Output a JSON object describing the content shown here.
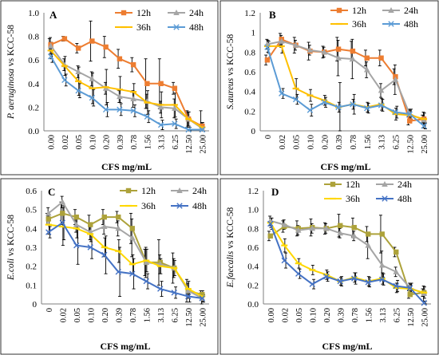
{
  "chart_data": [
    {
      "type": "line",
      "panel": "A",
      "ylabel_italic": "P. aeruginosa",
      "ylabel_rest": " vs KCC-58",
      "xlabel": "CFS mg/mL",
      "categories": [
        "0.00",
        "0.02",
        "0.05",
        "0.10",
        "0.20",
        "0.39",
        "0.78",
        "1.56",
        "3.13",
        "6.25",
        "12.50",
        "25.00"
      ],
      "ylim": [
        0,
        1.0
      ],
      "yticks": [
        "0.0",
        "0.2",
        "0.4",
        "0.6",
        "0.8",
        "1.0"
      ],
      "legend_position": "top-right",
      "series": [
        {
          "name": "12h",
          "color": "#ED7D31",
          "marker": "square",
          "values": [
            0.73,
            0.78,
            0.7,
            0.76,
            0.71,
            0.61,
            0.56,
            0.4,
            0.4,
            0.36,
            0.1,
            0.04
          ],
          "errors": [
            0.05,
            0.02,
            0.04,
            0.17,
            0.09,
            0.08,
            0.06,
            0.21,
            0.21,
            0.05,
            0.07,
            0.13
          ]
        },
        {
          "name": "24h",
          "color": "#A5A5A5",
          "marker": "triangle",
          "values": [
            0.72,
            0.56,
            0.5,
            0.44,
            0.36,
            0.29,
            0.27,
            0.25,
            0.2,
            0.19,
            0.1,
            0.02
          ],
          "errors": [
            0.07,
            0.05,
            0.05,
            0.06,
            0.05,
            0.05,
            0.07,
            0.06,
            0.05,
            0.08,
            0.06,
            0.05
          ]
        },
        {
          "name": "36h",
          "color": "#FFC000",
          "marker": "dash",
          "values": [
            0.68,
            0.55,
            0.42,
            0.36,
            0.37,
            0.35,
            0.33,
            0.24,
            0.22,
            0.22,
            0.1,
            0.03
          ],
          "errors": [
            0.07,
            0.08,
            0.12,
            0.13,
            0.15,
            0.11,
            0.07,
            0.1,
            0.11,
            0.1,
            0.06,
            0.04
          ]
        },
        {
          "name": "48h",
          "color": "#5B9BD5",
          "marker": "x",
          "values": [
            0.63,
            0.43,
            0.34,
            0.28,
            0.18,
            0.18,
            0.17,
            0.12,
            0.05,
            0.06,
            0.01,
            0.01
          ],
          "errors": [
            0.05,
            0.05,
            0.06,
            0.07,
            0.06,
            0.05,
            0.05,
            0.05,
            0.04,
            0.04,
            0.02,
            0.02
          ]
        }
      ]
    },
    {
      "type": "line",
      "panel": "B",
      "ylabel_italic": "S.aureus",
      "ylabel_rest": " vs KCC-58",
      "xlabel": "CFS mg/mL",
      "categories": [
        "0",
        "0.02",
        "0.05",
        "0.10",
        "0.20",
        "0.39",
        "0.78",
        "1.56",
        "3.13",
        "6.25",
        "12.50",
        "25.00"
      ],
      "ylim": [
        0,
        1.2
      ],
      "yticks": [
        "0",
        "0.2",
        "0.4",
        "0.6",
        "0.8",
        "1",
        "1.2"
      ],
      "legend_position": "top-right",
      "series": [
        {
          "name": "12h",
          "color": "#ED7D31",
          "marker": "square",
          "values": [
            0.72,
            0.93,
            0.87,
            0.81,
            0.8,
            0.83,
            0.81,
            0.74,
            0.74,
            0.55,
            0.1,
            0.12
          ],
          "errors": [
            0.05,
            0.06,
            0.08,
            0.09,
            0.06,
            0.12,
            0.1,
            0.08,
            0.08,
            0.08,
            0.04,
            0.04
          ]
        },
        {
          "name": "24h",
          "color": "#A5A5A5",
          "marker": "triangle",
          "values": [
            0.88,
            0.91,
            0.87,
            0.82,
            0.8,
            0.74,
            0.73,
            0.62,
            0.41,
            0.52,
            0.17,
            0.11
          ],
          "errors": [
            0.05,
            0.06,
            0.05,
            0.05,
            0.05,
            0.18,
            0.2,
            0.08,
            0.07,
            0.15,
            0.05,
            0.08
          ]
        },
        {
          "name": "36h",
          "color": "#FFC000",
          "marker": "dash",
          "values": [
            0.86,
            0.86,
            0.43,
            0.36,
            0.31,
            0.24,
            0.27,
            0.24,
            0.27,
            0.17,
            0.16,
            0.12
          ],
          "errors": [
            0.06,
            0.07,
            0.1,
            0.06,
            0.05,
            0.05,
            0.05,
            0.05,
            0.06,
            0.06,
            0.05,
            0.06
          ]
        },
        {
          "name": "48h",
          "color": "#5B9BD5",
          "marker": "x",
          "values": [
            0.85,
            0.38,
            0.32,
            0.21,
            0.29,
            0.24,
            0.27,
            0.23,
            0.26,
            0.19,
            0.17,
            0.05
          ],
          "errors": [
            0.06,
            0.05,
            0.05,
            0.06,
            0.05,
            0.25,
            0.1,
            0.05,
            0.06,
            0.06,
            0.05,
            0.03
          ]
        }
      ]
    },
    {
      "type": "line",
      "panel": "C",
      "ylabel_italic": "E.coli",
      "ylabel_rest": " vs KCC-58",
      "xlabel": "CFS mg/mL",
      "categories": [
        "0",
        "0.02",
        "0.05",
        "0.10",
        "0.20",
        "0.39",
        "0.78",
        "1.56",
        "3.13",
        "6.25",
        "12.50",
        "25.00"
      ],
      "ylim": [
        0,
        0.6
      ],
      "yticks": [
        "0",
        "0.1",
        "0.2",
        "0.3",
        "0.4",
        "0.5",
        "0.6"
      ],
      "legend_position": "top-right",
      "series": [
        {
          "name": "12h",
          "color": "#ADA23A",
          "marker": "square",
          "values": [
            0.45,
            0.48,
            0.46,
            0.42,
            0.46,
            0.46,
            0.4,
            0.22,
            0.22,
            0.19,
            0.07,
            0.05
          ],
          "errors": [
            0.03,
            0.06,
            0.04,
            0.05,
            0.04,
            0.03,
            0.08,
            0.07,
            0.12,
            0.08,
            0.06,
            0.02
          ]
        },
        {
          "name": "24h",
          "color": "#A5A5A5",
          "marker": "triangle",
          "values": [
            0.48,
            0.54,
            0.42,
            0.38,
            0.41,
            0.4,
            0.35,
            0.22,
            0.21,
            0.19,
            0.07,
            0.03
          ],
          "errors": [
            0.03,
            0.03,
            0.04,
            0.04,
            0.04,
            0.04,
            0.1,
            0.08,
            0.05,
            0.05,
            0.04,
            0.03
          ]
        },
        {
          "name": "36h",
          "color": "#FFD700",
          "marker": "dash",
          "values": [
            0.42,
            0.41,
            0.4,
            0.37,
            0.3,
            0.28,
            0.21,
            0.23,
            0.2,
            0.19,
            0.08,
            0.04
          ],
          "errors": [
            0.05,
            0.1,
            0.05,
            0.04,
            0.05,
            0.06,
            0.05,
            0.06,
            0.04,
            0.04,
            0.04,
            0.03
          ]
        },
        {
          "name": "48h",
          "color": "#4472C4",
          "marker": "x",
          "values": [
            0.38,
            0.43,
            0.31,
            0.3,
            0.26,
            0.17,
            0.16,
            0.12,
            0.08,
            0.06,
            0.04,
            0.03
          ],
          "errors": [
            0.03,
            0.09,
            0.1,
            0.06,
            0.1,
            0.13,
            0.08,
            0.04,
            0.04,
            0.03,
            0.03,
            0.02
          ]
        }
      ]
    },
    {
      "type": "line",
      "panel": "D",
      "ylabel_italic": "E.faecalis",
      "ylabel_rest": " vs KCC-58",
      "xlabel": "CFS mg/mL",
      "categories": [
        "0.00",
        "0.02",
        "0.05",
        "0.10",
        "0.20",
        "0.39",
        "0.78",
        "1.56",
        "3.13",
        "6.25",
        "12.50",
        "25.00"
      ],
      "ylim": [
        0,
        1.2
      ],
      "yticks": [
        "0.0",
        "0.2",
        "0.4",
        "0.6",
        "0.8",
        "1.0",
        "1.2"
      ],
      "legend_position": "top-right",
      "series": [
        {
          "name": "12h",
          "color": "#ADA23A",
          "marker": "square",
          "values": [
            0.72,
            0.82,
            0.8,
            0.81,
            0.8,
            0.83,
            0.81,
            0.74,
            0.74,
            0.55,
            0.1,
            0.12
          ],
          "errors": [
            0.05,
            0.06,
            0.08,
            0.09,
            0.06,
            0.12,
            0.1,
            0.08,
            0.2,
            0.05,
            0.04,
            0.04
          ]
        },
        {
          "name": "24h",
          "color": "#A5A5A5",
          "marker": "triangle",
          "values": [
            0.88,
            0.84,
            0.78,
            0.8,
            0.8,
            0.75,
            0.72,
            0.62,
            0.41,
            0.34,
            0.17,
            0.11
          ],
          "errors": [
            0.05,
            0.05,
            0.05,
            0.05,
            0.05,
            0.05,
            0.05,
            0.14,
            0.15,
            0.05,
            0.05,
            0.08
          ]
        },
        {
          "name": "36h",
          "color": "#FFD700",
          "marker": "dash",
          "values": [
            0.86,
            0.62,
            0.43,
            0.36,
            0.31,
            0.24,
            0.28,
            0.24,
            0.27,
            0.17,
            0.16,
            0.12
          ],
          "errors": [
            0.05,
            0.07,
            0.05,
            0.05,
            0.05,
            0.04,
            0.05,
            0.05,
            0.06,
            0.05,
            0.05,
            0.06
          ]
        },
        {
          "name": "48h",
          "color": "#4472C4",
          "marker": "x",
          "values": [
            0.85,
            0.46,
            0.32,
            0.21,
            0.29,
            0.24,
            0.27,
            0.23,
            0.26,
            0.19,
            0.17,
            0.01
          ],
          "errors": [
            0.06,
            0.08,
            0.05,
            0.05,
            0.05,
            0.05,
            0.06,
            0.05,
            0.06,
            0.06,
            0.05,
            0.02
          ]
        }
      ]
    }
  ]
}
